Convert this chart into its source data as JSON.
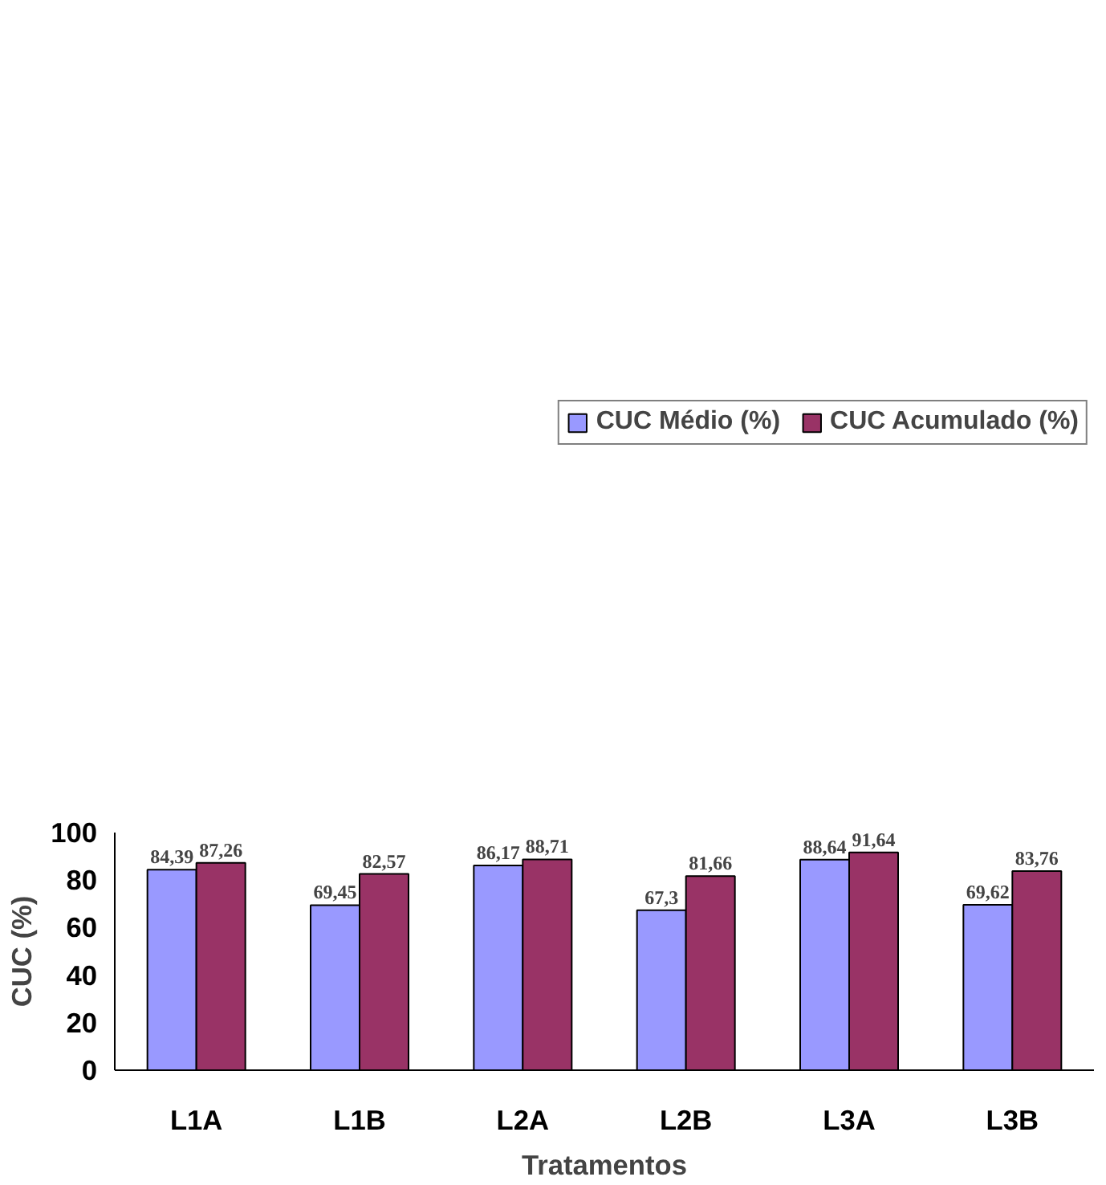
{
  "chart_data": {
    "type": "bar",
    "xlabel": "Tratamentos",
    "ylabel": "CUC (%)",
    "categories": [
      "L1A",
      "L1B",
      "L2A",
      "L2B",
      "L3A",
      "L3B"
    ],
    "series": [
      {
        "name": "CUC Médio (%)",
        "color": "#9999ff",
        "values": [
          84.39,
          69.45,
          86.17,
          67.3,
          88.64,
          69.62
        ],
        "value_labels": [
          "84,39",
          "69,45",
          "86,17",
          "67,3",
          "88,64",
          "69,62"
        ]
      },
      {
        "name": "CUC Acumulado (%)",
        "color": "#993366",
        "values": [
          87.26,
          82.57,
          88.71,
          81.66,
          91.64,
          83.76
        ],
        "value_labels": [
          "87,26",
          "82,57",
          "88,71",
          "81,66",
          "91,64",
          "83,76"
        ]
      }
    ],
    "ylim": [
      0,
      100
    ],
    "yticks": [
      0,
      20,
      40,
      60,
      80,
      100
    ],
    "grid": false,
    "legend": "top"
  }
}
